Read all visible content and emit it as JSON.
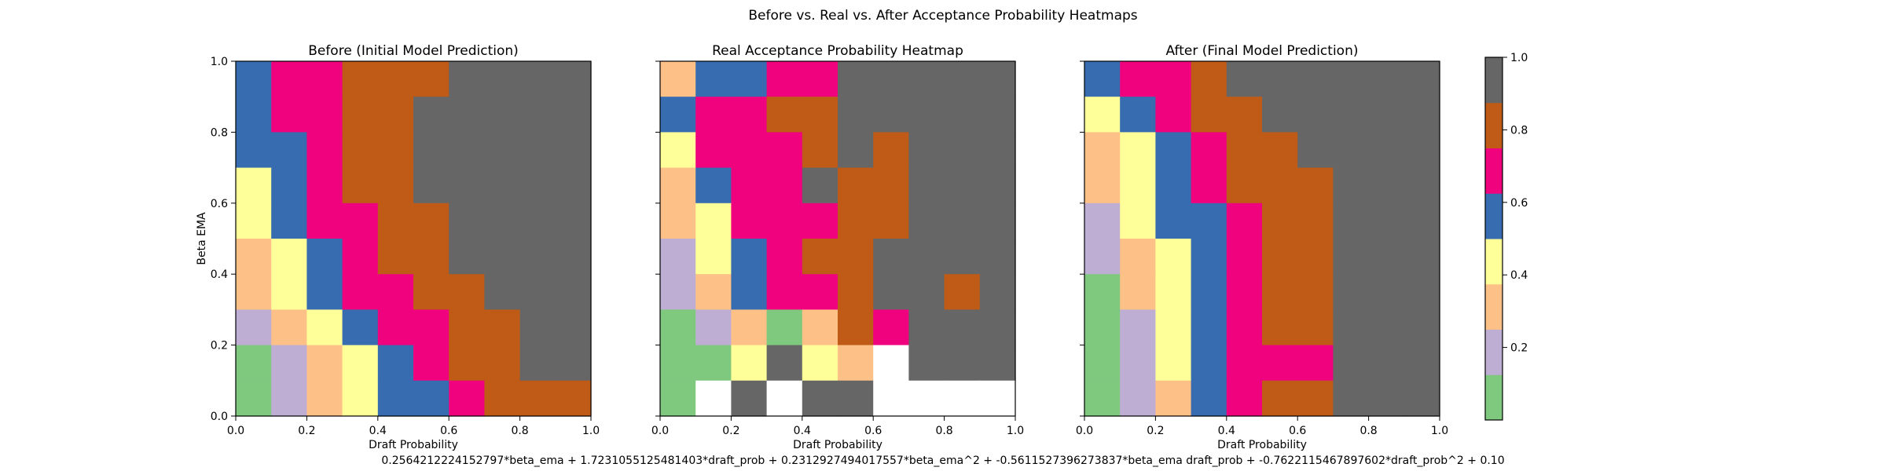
{
  "figure_title": "Before vs. Real vs. After Acceptance Probability Heatmaps",
  "formula": "0.2564212224152797*beta_ema + 1.7231055125481403*draft_prob + 0.2312927494017557*beta_ema^2 + -0.5611527396273837*beta_ema draft_prob + -0.7622115467897602*draft_prob^2 + 0.10",
  "colors": {
    "palette_Accent_bins": [
      "#7fc97f",
      "#beaed4",
      "#fdc086",
      "#ffff99",
      "#386cb0",
      "#f0027f",
      "#bf5b17",
      "#666666"
    ],
    "empty_cell": "#ffffff"
  },
  "colorbar": {
    "bounds": [
      0.0,
      0.125,
      0.25,
      0.375,
      0.5,
      0.625,
      0.75,
      0.875,
      1.0
    ],
    "ticks": [
      "0.2",
      "0.4",
      "0.6",
      "0.8",
      "1.0"
    ],
    "tick_values": [
      0.2,
      0.4,
      0.6,
      0.8,
      1.0
    ]
  },
  "chart_data": [
    {
      "type": "heatmap",
      "title": "Before (Initial Model Prediction)",
      "xlabel": "Draft Probability",
      "ylabel": "Beta EMA",
      "xlim": [
        0,
        1
      ],
      "ylim": [
        0,
        1
      ],
      "x_ticks": [
        "0.0",
        "0.2",
        "0.4",
        "0.6",
        "0.8",
        "1.0"
      ],
      "y_ticks": [
        "0.0",
        "0.2",
        "0.4",
        "0.6",
        "0.8",
        "1.0"
      ],
      "show_y_tick_labels": true,
      "bins": 10,
      "grid": false,
      "values_rows_top_to_bottom": [
        [
          0.6,
          0.7,
          0.7,
          0.8,
          0.8,
          0.8,
          1.0,
          1.0,
          1.0,
          1.0
        ],
        [
          0.6,
          0.7,
          0.7,
          0.8,
          0.8,
          1.0,
          1.0,
          1.0,
          1.0,
          1.0
        ],
        [
          0.6,
          0.6,
          0.7,
          0.8,
          0.8,
          1.0,
          1.0,
          1.0,
          1.0,
          1.0
        ],
        [
          0.4,
          0.6,
          0.7,
          0.8,
          0.8,
          1.0,
          1.0,
          1.0,
          1.0,
          1.0
        ],
        [
          0.4,
          0.6,
          0.7,
          0.7,
          0.8,
          0.8,
          1.0,
          1.0,
          1.0,
          1.0
        ],
        [
          0.3,
          0.4,
          0.6,
          0.7,
          0.8,
          0.8,
          1.0,
          1.0,
          1.0,
          1.0
        ],
        [
          0.3,
          0.4,
          0.6,
          0.7,
          0.7,
          0.8,
          0.8,
          1.0,
          1.0,
          1.0
        ],
        [
          0.2,
          0.3,
          0.4,
          0.6,
          0.7,
          0.7,
          0.8,
          0.8,
          1.0,
          1.0
        ],
        [
          0.1,
          0.2,
          0.3,
          0.4,
          0.6,
          0.7,
          0.8,
          0.8,
          1.0,
          1.0
        ],
        [
          0.1,
          0.2,
          0.3,
          0.4,
          0.6,
          0.6,
          0.7,
          0.8,
          0.8,
          0.8
        ]
      ]
    },
    {
      "type": "heatmap",
      "title": "Real Acceptance Probability Heatmap",
      "xlabel": "Draft Probability",
      "ylabel": "",
      "xlim": [
        0,
        1
      ],
      "ylim": [
        0,
        1
      ],
      "x_ticks": [
        "0.0",
        "0.2",
        "0.4",
        "0.6",
        "0.8",
        "1.0"
      ],
      "y_ticks": [
        "0.0",
        "0.2",
        "0.4",
        "0.6",
        "0.8",
        "1.0"
      ],
      "show_y_tick_labels": false,
      "bins": 10,
      "grid": false,
      "values_rows_top_to_bottom": [
        [
          0.3,
          0.6,
          0.6,
          0.7,
          0.7,
          1.0,
          1.0,
          1.0,
          1.0,
          1.0
        ],
        [
          0.6,
          0.7,
          0.7,
          0.8,
          0.8,
          1.0,
          1.0,
          1.0,
          1.0,
          1.0
        ],
        [
          0.4,
          0.7,
          0.7,
          0.7,
          0.8,
          1.0,
          0.8,
          1.0,
          1.0,
          1.0
        ],
        [
          0.3,
          0.6,
          0.7,
          0.7,
          1.0,
          0.8,
          0.8,
          1.0,
          1.0,
          1.0
        ],
        [
          0.3,
          0.4,
          0.7,
          0.7,
          0.7,
          0.8,
          0.8,
          1.0,
          1.0,
          1.0
        ],
        [
          0.2,
          0.4,
          0.6,
          0.7,
          0.8,
          0.8,
          1.0,
          1.0,
          1.0,
          1.0
        ],
        [
          0.2,
          0.3,
          0.6,
          0.7,
          0.7,
          0.8,
          1.0,
          1.0,
          0.8,
          1.0
        ],
        [
          0.1,
          0.2,
          0.3,
          0.1,
          0.3,
          0.8,
          0.7,
          1.0,
          1.0,
          1.0
        ],
        [
          0.1,
          0.1,
          0.4,
          1.0,
          0.4,
          0.3,
          null,
          1.0,
          1.0,
          1.0
        ],
        [
          0.1,
          null,
          1.0,
          null,
          1.0,
          1.0,
          null,
          null,
          null,
          null
        ]
      ]
    },
    {
      "type": "heatmap",
      "title": "After (Final Model Prediction)",
      "xlabel": "Draft Probability",
      "ylabel": "",
      "xlim": [
        0,
        1
      ],
      "ylim": [
        0,
        1
      ],
      "x_ticks": [
        "0.0",
        "0.2",
        "0.4",
        "0.6",
        "0.8",
        "1.0"
      ],
      "y_ticks": [
        "0.0",
        "0.2",
        "0.4",
        "0.6",
        "0.8",
        "1.0"
      ],
      "show_y_tick_labels": false,
      "bins": 10,
      "grid": false,
      "values_rows_top_to_bottom": [
        [
          0.6,
          0.7,
          0.7,
          0.8,
          1.0,
          1.0,
          1.0,
          1.0,
          1.0,
          1.0
        ],
        [
          0.4,
          0.6,
          0.7,
          0.8,
          0.8,
          1.0,
          1.0,
          1.0,
          1.0,
          1.0
        ],
        [
          0.3,
          0.4,
          0.6,
          0.7,
          0.8,
          0.8,
          1.0,
          1.0,
          1.0,
          1.0
        ],
        [
          0.3,
          0.4,
          0.6,
          0.7,
          0.8,
          0.8,
          0.8,
          1.0,
          1.0,
          1.0
        ],
        [
          0.2,
          0.4,
          0.6,
          0.6,
          0.7,
          0.8,
          0.8,
          1.0,
          1.0,
          1.0
        ],
        [
          0.2,
          0.3,
          0.4,
          0.6,
          0.7,
          0.8,
          0.8,
          1.0,
          1.0,
          1.0
        ],
        [
          0.1,
          0.3,
          0.4,
          0.6,
          0.7,
          0.8,
          0.8,
          1.0,
          1.0,
          1.0
        ],
        [
          0.1,
          0.2,
          0.4,
          0.6,
          0.7,
          0.8,
          0.8,
          1.0,
          1.0,
          1.0
        ],
        [
          0.1,
          0.2,
          0.4,
          0.6,
          0.7,
          0.7,
          0.7,
          1.0,
          1.0,
          1.0
        ],
        [
          0.1,
          0.2,
          0.3,
          0.6,
          0.7,
          0.8,
          0.8,
          1.0,
          1.0,
          1.0
        ]
      ]
    }
  ]
}
